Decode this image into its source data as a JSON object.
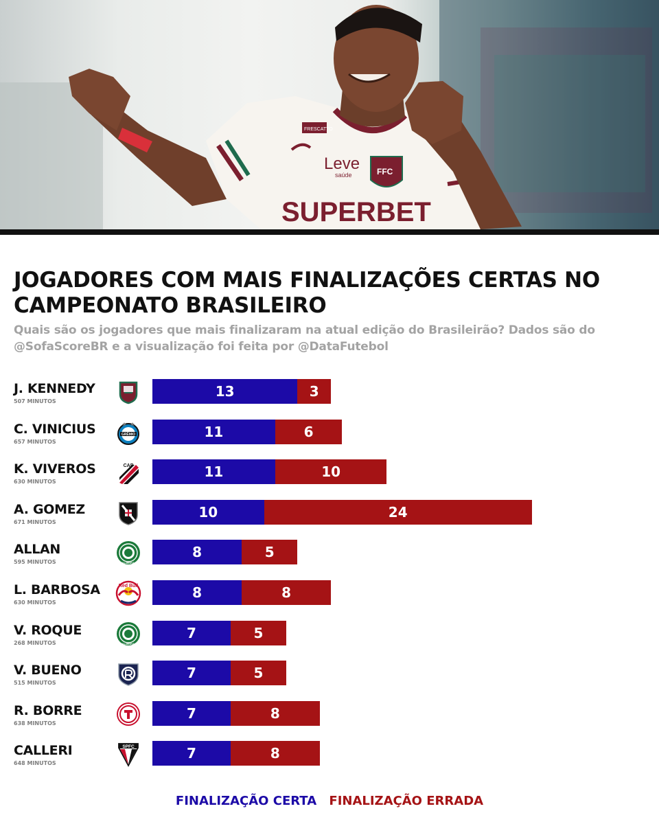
{
  "title": "JOGADORES COM MAIS FINALIZAÇÕES CERTAS NO CAMPEONATO BRASILEIRO",
  "subtitle": "Quais são os jogadores que mais finalizaram na atual edição do Brasileirão? Dados são do @SofaScoreBR e a visualização foi feita por @DataFutebol",
  "hero": {
    "shirt_sponsor": "SUPERBET",
    "shirt_brand": "Leve",
    "shirt_brand_sub": "saúde",
    "shirt_collar_sponsor": "FRESCATTO",
    "crest_letters": "FFC"
  },
  "colors": {
    "certa": "#1c0aa7",
    "errada": "#a51315"
  },
  "legend": {
    "certa": "FINALIZAÇÃO CERTA",
    "errada": "FINALIZAÇÃO ERRADA"
  },
  "chart_data": {
    "type": "bar",
    "orientation": "horizontal",
    "stacked": true,
    "categories": [
      "J. KENNEDY",
      "C. VINICIUS",
      "K. VIVEROS",
      "A. GOMEZ",
      "ALLAN",
      "L. BARBOSA",
      "V. ROQUE",
      "V. BUENO",
      "R. BORRE",
      "CALLERI"
    ],
    "minutes": [
      "507 MINUTOS",
      "657 MINUTOS",
      "630 MINUTOS",
      "671 MINUTOS",
      "595 MINUTOS",
      "630 MINUTOS",
      "268 MINUTOS",
      "515 MINUTOS",
      "638 MINUTOS",
      "648 MINUTOS"
    ],
    "clubs": [
      "fluminense-crest",
      "gremio-crest",
      "athletico-crest",
      "vasco-crest",
      "palmeiras-crest",
      "bragantino-crest",
      "palmeiras-crest",
      "remo-crest",
      "internacional-crest",
      "sao-paulo-crest"
    ],
    "club_texts": {
      "gremio": "GRÊMIO",
      "palmeiras": "PALMEIRAS",
      "bragantino": "Red Bull",
      "sao_paulo": "SPFC",
      "athletico": "CAP"
    },
    "series": [
      {
        "name": "FINALIZAÇÃO CERTA",
        "values": [
          13,
          11,
          11,
          10,
          8,
          8,
          7,
          7,
          7,
          7
        ]
      },
      {
        "name": "FINALIZAÇÃO ERRADA",
        "values": [
          3,
          6,
          10,
          24,
          5,
          8,
          5,
          5,
          8,
          8
        ]
      }
    ],
    "title": "JOGADORES COM MAIS FINALIZAÇÕES CERTAS NO CAMPEONATO BRASILEIRO",
    "legend_position": "bottom-center",
    "grid": false
  }
}
